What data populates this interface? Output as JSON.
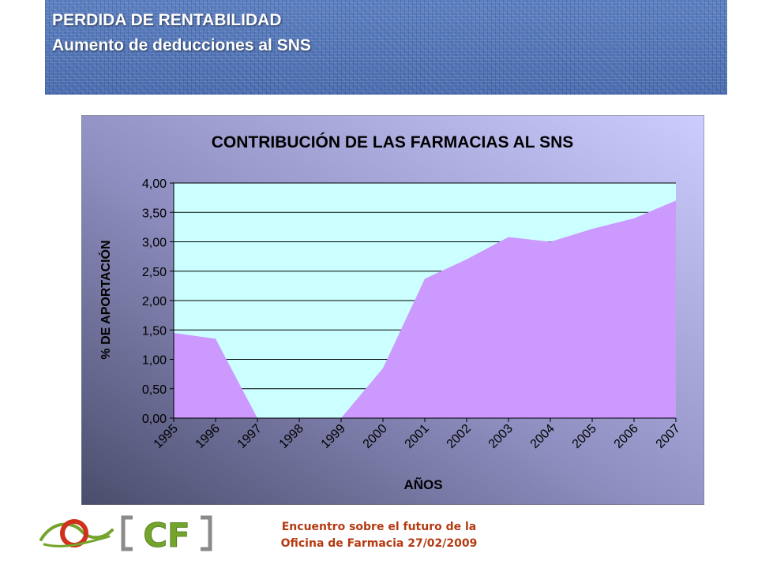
{
  "header": {
    "title": "PERDIDA DE RENTABILIDAD",
    "subtitle": "Aumento de deducciones al SNS"
  },
  "footer": {
    "line1": "Encuentro sobre el futuro de la",
    "line2": "Oficina de Farmacia 27/02/2009",
    "logo_text": "CF"
  },
  "colors": {
    "banner": "#4f72b4",
    "plot_background": "#ccffff",
    "area_fill": "#cc99ff",
    "footer_text": "#b53a12",
    "logo_green": "#74a42c",
    "logo_red": "#d0311d"
  },
  "chart_data": {
    "type": "area",
    "title": "CONTRIBUCIÓN DE LAS FARMACIAS AL SNS",
    "xlabel": "AÑOS",
    "ylabel": "% DE APORTACIÓN",
    "categories": [
      "1995",
      "1996",
      "1997",
      "1998",
      "1999",
      "2000",
      "2001",
      "2002",
      "2003",
      "2004",
      "2005",
      "2006",
      "2007"
    ],
    "series": [
      {
        "values": [
          1.45,
          1.35,
          0.0,
          0.0,
          0.0,
          0.85,
          2.37,
          2.7,
          3.08,
          3.0,
          3.22,
          3.4,
          3.7
        ]
      }
    ],
    "ylim": [
      0,
      4
    ],
    "yticks": [
      "0,00",
      "0,50",
      "1,00",
      "1,50",
      "2,00",
      "2,50",
      "3,00",
      "3,50",
      "4,00"
    ],
    "grid": true,
    "legend": "none"
  }
}
